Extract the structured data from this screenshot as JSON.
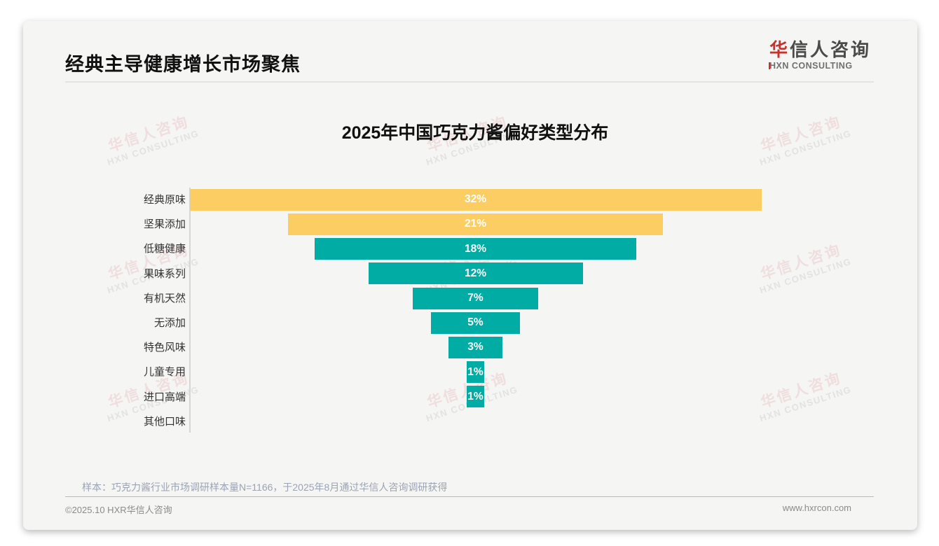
{
  "header": {
    "title": "经典主导健康增长市场聚焦",
    "logo": {
      "cn_first": "华",
      "cn_rest": "信人咨询",
      "en_first": "H",
      "en_rest": "XN CONSULTING"
    }
  },
  "chart_data": {
    "type": "bar",
    "subtype": "horizontal-centered-funnel",
    "title": "2025年中国巧克力酱偏好类型分布",
    "categories": [
      "经典原味",
      "坚果添加",
      "低糖健康",
      "果味系列",
      "有机天然",
      "无添加",
      "特色风味",
      "儿童专用",
      "进口高端",
      "其他口味"
    ],
    "values": [
      32,
      21,
      18,
      12,
      7,
      5,
      3,
      1,
      1,
      0
    ],
    "unit": "%",
    "xlim": [
      0,
      32
    ],
    "orientation": "horizontal",
    "grid": false,
    "legend": false,
    "bar_colors": [
      "#FBCD63",
      "#FBCD63",
      "#00ACA4",
      "#00ACA4",
      "#00ACA4",
      "#00ACA4",
      "#00ACA4",
      "#00ACA4",
      "#00ACA4",
      "#00ACA4"
    ],
    "colors": {
      "classic_yellow": "#FBCD63",
      "health_teal": "#00ACA4",
      "value_label_text": "#FFFFFF"
    }
  },
  "watermark": {
    "line1": "华信人咨询",
    "line2": "HXN CONSULTING"
  },
  "footer": {
    "sample_note": "样本：巧克力酱行业市场调研样本量N=1166，于2025年8月通过华信人咨询调研获得",
    "copyright": "©2025.10 HXR华信人咨询",
    "website": "www.hxrcon.com"
  },
  "brand": {
    "accent_red": "#C5332F"
  }
}
